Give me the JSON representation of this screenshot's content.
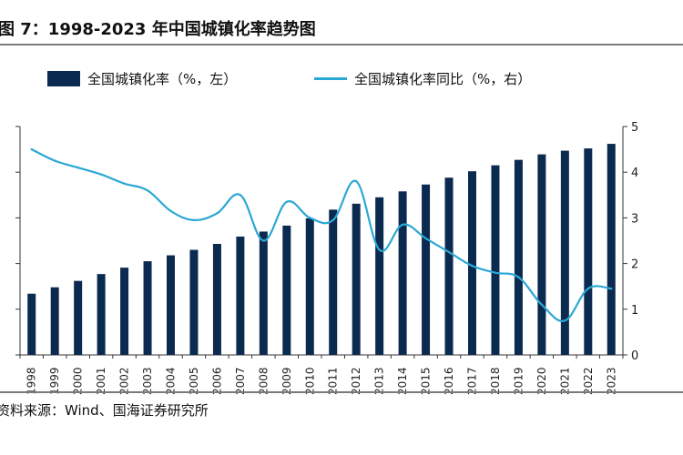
{
  "title": "图 7：1998-2023 年中国城镇化率趋势图",
  "source": "资料来源：Wind、国海证券研究所",
  "colors": {
    "bar": "#0b2a4f",
    "line": "#2ba8d4",
    "axis": "#333333"
  },
  "legend": {
    "bar_label": "全国城镇化率（%，左）",
    "line_label": "全国城镇化率同比（%，右）"
  },
  "chart_data": {
    "type": "bar",
    "categories": [
      "1998",
      "1999",
      "2000",
      "2001",
      "2002",
      "2003",
      "2004",
      "2005",
      "2006",
      "2007",
      "2008",
      "2009",
      "2010",
      "2011",
      "2012",
      "2013",
      "2014",
      "2015",
      "2016",
      "2017",
      "2018",
      "2019",
      "2020",
      "2021",
      "2022",
      "2023"
    ],
    "series": [
      {
        "name": "全国城镇化率（%，左）",
        "type": "bar",
        "axis": "left",
        "values": [
          33.4,
          34.8,
          36.2,
          37.7,
          39.1,
          40.5,
          41.8,
          43.0,
          44.3,
          45.9,
          47.0,
          48.3,
          49.9,
          51.8,
          53.1,
          54.5,
          55.8,
          57.3,
          58.8,
          60.2,
          61.5,
          62.7,
          63.9,
          64.7,
          65.2,
          66.2
        ]
      },
      {
        "name": "全国城镇化率同比（%，右）",
        "type": "line",
        "axis": "right",
        "values": [
          4.5,
          4.25,
          4.1,
          3.95,
          3.75,
          3.6,
          3.15,
          2.95,
          3.1,
          3.5,
          2.5,
          3.35,
          3.0,
          2.95,
          3.8,
          2.3,
          2.85,
          2.55,
          2.25,
          1.95,
          1.8,
          1.7,
          1.1,
          0.75,
          1.45,
          1.45
        ]
      }
    ],
    "xlabel": "",
    "ylabel_left": "",
    "ylabel_right": "",
    "ylim_left": [
      20,
      70
    ],
    "ylim_right": [
      0,
      5
    ],
    "yticks_left": [
      "20",
      "30",
      "40",
      "50",
      "60",
      "70"
    ],
    "yticks_right": [
      "0",
      "1",
      "2",
      "3",
      "4",
      "5"
    ],
    "grid": false,
    "legend_position": "top"
  }
}
